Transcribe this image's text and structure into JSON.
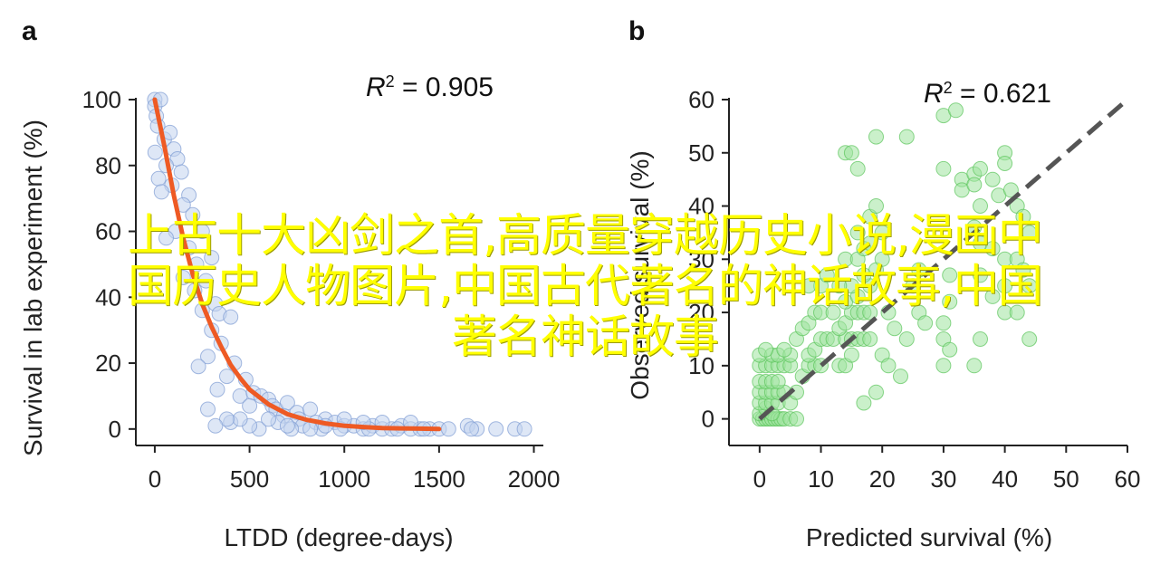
{
  "chart_data": [
    {
      "panel": "a",
      "type": "scatter",
      "xlabel": "LTDD (degree-days)",
      "ylabel": "Survival in lab experiment (%)",
      "xlim": [
        -100,
        2050
      ],
      "ylim": [
        -5,
        100
      ],
      "xticks": [
        0,
        500,
        1000,
        1500,
        2000
      ],
      "yticks": [
        0,
        20,
        40,
        60,
        80,
        100
      ],
      "annotation_r": "R",
      "annotation_exp": "2",
      "annotation_val": " = 0.905",
      "colors": {
        "point_fill": "#c3d4ef",
        "point_stroke": "#7e9bd3",
        "fit": "#ee5a24"
      },
      "points": [
        [
          0,
          100
        ],
        [
          0,
          98
        ],
        [
          8,
          95
        ],
        [
          30,
          100
        ],
        [
          15,
          92
        ],
        [
          50,
          88
        ],
        [
          2,
          84
        ],
        [
          80,
          90
        ],
        [
          100,
          85
        ],
        [
          120,
          82
        ],
        [
          60,
          80
        ],
        [
          140,
          78
        ],
        [
          20,
          76
        ],
        [
          90,
          74
        ],
        [
          180,
          71
        ],
        [
          35,
          72
        ],
        [
          150,
          68
        ],
        [
          200,
          65
        ],
        [
          110,
          60
        ],
        [
          60,
          58
        ],
        [
          250,
          60
        ],
        [
          180,
          55
        ],
        [
          220,
          50
        ],
        [
          300,
          52
        ],
        [
          150,
          46
        ],
        [
          270,
          45
        ],
        [
          210,
          42
        ],
        [
          320,
          38
        ],
        [
          340,
          35
        ],
        [
          250,
          36
        ],
        [
          400,
          34
        ],
        [
          300,
          30
        ],
        [
          350,
          26
        ],
        [
          280,
          22
        ],
        [
          420,
          20
        ],
        [
          230,
          19
        ],
        [
          380,
          16
        ],
        [
          480,
          15
        ],
        [
          330,
          12
        ],
        [
          450,
          10
        ],
        [
          520,
          11
        ],
        [
          560,
          10
        ],
        [
          600,
          9
        ],
        [
          620,
          7
        ],
        [
          500,
          7
        ],
        [
          640,
          6
        ],
        [
          700,
          8
        ],
        [
          750,
          5
        ],
        [
          680,
          4
        ],
        [
          820,
          6
        ],
        [
          760,
          3
        ],
        [
          900,
          3
        ],
        [
          850,
          2
        ],
        [
          780,
          1
        ],
        [
          950,
          2
        ],
        [
          1000,
          1
        ],
        [
          1050,
          1
        ],
        [
          1100,
          0
        ],
        [
          1150,
          1
        ],
        [
          1200,
          0
        ],
        [
          1250,
          0
        ],
        [
          1300,
          1
        ],
        [
          1350,
          0
        ],
        [
          1400,
          0
        ],
        [
          1450,
          0
        ],
        [
          1500,
          0
        ],
        [
          1550,
          0
        ],
        [
          1650,
          1
        ],
        [
          1700,
          0
        ],
        [
          1800,
          0
        ],
        [
          1900,
          0
        ],
        [
          1950,
          0
        ],
        [
          400,
          2
        ],
        [
          550,
          0
        ],
        [
          650,
          2
        ],
        [
          720,
          0
        ],
        [
          880,
          0
        ],
        [
          980,
          0
        ],
        [
          1130,
          0
        ],
        [
          1280,
          0
        ],
        [
          1420,
          0
        ],
        [
          1670,
          0
        ],
        [
          600,
          3
        ],
        [
          500,
          1
        ],
        [
          450,
          3
        ],
        [
          380,
          3
        ],
        [
          320,
          1
        ],
        [
          280,
          6
        ],
        [
          1000,
          3
        ],
        [
          1100,
          2
        ],
        [
          1200,
          2
        ],
        [
          820,
          0
        ],
        [
          900,
          1
        ],
        [
          700,
          1
        ],
        [
          1350,
          2
        ]
      ],
      "fit": [
        [
          0,
          100
        ],
        [
          50,
          86
        ],
        [
          100,
          71
        ],
        [
          150,
          58
        ],
        [
          200,
          47
        ],
        [
          250,
          38
        ],
        [
          300,
          31
        ],
        [
          350,
          25
        ],
        [
          400,
          19.5
        ],
        [
          450,
          15.5
        ],
        [
          500,
          12
        ],
        [
          600,
          7.5
        ],
        [
          700,
          4.5
        ],
        [
          800,
          2.8
        ],
        [
          900,
          1.7
        ],
        [
          1000,
          1
        ],
        [
          1100,
          0.6
        ],
        [
          1200,
          0.3
        ],
        [
          1300,
          0.2
        ],
        [
          1400,
          0.1
        ],
        [
          1500,
          0
        ]
      ]
    },
    {
      "panel": "b",
      "type": "scatter",
      "xlabel": "Predicted survival (%)",
      "ylabel": "Observed survival (%)",
      "xlim": [
        -5,
        60
      ],
      "ylim": [
        -5,
        60
      ],
      "xticks": [
        0,
        10,
        20,
        30,
        40,
        50,
        60
      ],
      "yticks": [
        0,
        10,
        20,
        30,
        40,
        50,
        60
      ],
      "annotation_r": "R",
      "annotation_exp": "2",
      "annotation_val": " = 0.621",
      "colors": {
        "point_fill": "#9ee39e",
        "point_stroke": "#5bc45b",
        "fit": "#555555"
      },
      "points": [
        [
          0,
          0
        ],
        [
          0.5,
          0
        ],
        [
          1,
          0
        ],
        [
          1.5,
          0
        ],
        [
          2,
          0
        ],
        [
          2.5,
          0
        ],
        [
          3,
          0
        ],
        [
          3.5,
          0
        ],
        [
          4,
          0
        ],
        [
          5,
          0
        ],
        [
          6,
          0
        ],
        [
          0,
          1
        ],
        [
          1,
          2
        ],
        [
          2,
          1
        ],
        [
          0,
          3
        ],
        [
          1,
          3
        ],
        [
          2,
          3
        ],
        [
          3,
          3
        ],
        [
          0,
          5
        ],
        [
          1,
          5
        ],
        [
          2,
          5
        ],
        [
          3,
          5
        ],
        [
          4,
          5
        ],
        [
          0,
          7
        ],
        [
          1,
          7
        ],
        [
          2,
          7
        ],
        [
          3,
          7
        ],
        [
          0,
          10
        ],
        [
          1,
          10
        ],
        [
          2,
          10
        ],
        [
          3,
          10
        ],
        [
          4,
          10
        ],
        [
          5,
          10
        ],
        [
          0,
          12
        ],
        [
          2,
          12
        ],
        [
          3,
          12
        ],
        [
          5,
          12
        ],
        [
          1,
          13
        ],
        [
          4,
          13
        ],
        [
          5,
          3
        ],
        [
          6,
          5
        ],
        [
          7,
          8
        ],
        [
          8,
          10
        ],
        [
          9,
          10
        ],
        [
          10,
          10
        ],
        [
          8,
          12
        ],
        [
          9,
          13
        ],
        [
          10,
          15
        ],
        [
          11,
          15
        ],
        [
          12,
          15
        ],
        [
          6,
          15
        ],
        [
          7,
          17
        ],
        [
          8,
          18
        ],
        [
          9,
          20
        ],
        [
          10,
          20
        ],
        [
          12,
          20
        ],
        [
          10,
          25
        ],
        [
          11,
          27
        ],
        [
          8,
          25
        ],
        [
          13,
          10
        ],
        [
          14,
          10
        ],
        [
          15,
          12
        ],
        [
          14,
          15
        ],
        [
          15,
          15
        ],
        [
          16,
          15
        ],
        [
          17,
          15
        ],
        [
          18,
          15
        ],
        [
          13,
          17
        ],
        [
          14,
          18
        ],
        [
          15,
          20
        ],
        [
          16,
          20
        ],
        [
          17,
          20
        ],
        [
          18,
          20
        ],
        [
          14,
          22
        ],
        [
          16,
          23
        ],
        [
          18,
          25
        ],
        [
          15,
          25
        ],
        [
          17,
          27
        ],
        [
          19,
          28
        ],
        [
          20,
          30
        ],
        [
          16,
          35
        ],
        [
          18,
          38
        ],
        [
          19,
          40
        ],
        [
          20,
          35
        ],
        [
          14,
          30
        ],
        [
          13,
          25
        ],
        [
          16,
          30
        ],
        [
          17,
          32
        ],
        [
          18,
          33
        ],
        [
          14,
          50
        ],
        [
          15,
          50
        ],
        [
          16,
          47
        ],
        [
          19,
          53
        ],
        [
          24,
          53
        ],
        [
          30,
          57
        ],
        [
          32,
          58
        ],
        [
          30,
          47
        ],
        [
          33,
          45
        ],
        [
          35,
          46
        ],
        [
          36,
          47
        ],
        [
          33,
          43
        ],
        [
          35,
          44
        ],
        [
          36,
          40
        ],
        [
          38,
          45
        ],
        [
          39,
          42
        ],
        [
          40,
          50
        ],
        [
          40,
          48
        ],
        [
          41,
          43
        ],
        [
          42,
          40
        ],
        [
          43,
          38
        ],
        [
          44,
          35
        ],
        [
          35,
          36
        ],
        [
          36,
          33
        ],
        [
          38,
          32
        ],
        [
          40,
          30
        ],
        [
          42,
          30
        ],
        [
          43,
          28
        ],
        [
          44,
          25
        ],
        [
          36,
          27
        ],
        [
          38,
          23
        ],
        [
          40,
          20
        ],
        [
          42,
          20
        ],
        [
          44,
          15
        ],
        [
          31,
          27
        ],
        [
          31,
          22
        ],
        [
          30,
          18
        ],
        [
          30,
          15
        ],
        [
          31,
          13
        ],
        [
          30,
          10
        ],
        [
          36,
          15
        ],
        [
          35,
          10
        ],
        [
          40,
          25
        ],
        [
          25,
          25
        ],
        [
          26,
          20
        ],
        [
          27,
          18
        ],
        [
          24,
          15
        ],
        [
          22,
          17
        ],
        [
          20,
          12
        ],
        [
          21,
          10
        ],
        [
          23,
          8
        ],
        [
          19,
          5
        ],
        [
          17,
          3
        ],
        [
          21,
          20
        ],
        [
          26,
          28
        ]
      ],
      "fit_line": [
        [
          0,
          0
        ],
        [
          60,
          60
        ]
      ]
    }
  ],
  "overlay": {
    "line1": "上古十大凶剑之首,高质量穿越历史小说,漫画中",
    "line2": "国历史人物图片,中国古代著名的神话故事,中国",
    "line3": "著名神话故事"
  }
}
